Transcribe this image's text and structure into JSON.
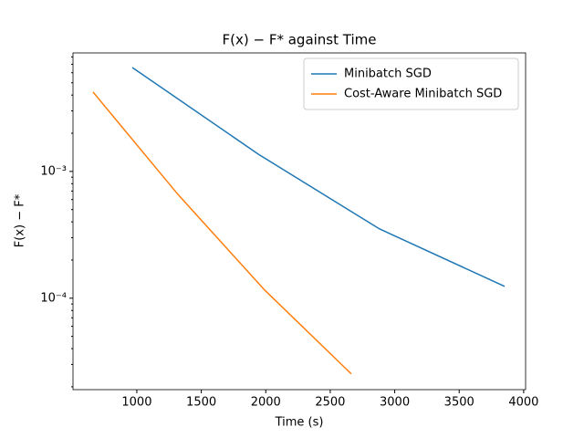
{
  "chart_data": {
    "type": "line",
    "title": "F(x) − F* against Time",
    "xlabel": "Time (s)",
    "ylabel": "F(x) − F*",
    "xlim": [
      505,
      4015
    ],
    "xticks": [
      1000,
      1500,
      2000,
      2500,
      3000,
      3500,
      4000
    ],
    "ylim": [
      1.9e-05,
      0.0086
    ],
    "yscale": "log",
    "yticks": [
      {
        "value": 0.0001,
        "label": "10⁻⁴"
      },
      {
        "value": 0.001,
        "label": "10⁻³"
      }
    ],
    "yminorticks": [
      2e-05,
      3e-05,
      4e-05,
      5e-05,
      6e-05,
      7e-05,
      8e-05,
      9e-05,
      0.0002,
      0.0003,
      0.0004,
      0.0005,
      0.0006,
      0.0007,
      0.0008,
      0.0009,
      0.002,
      0.003,
      0.004,
      0.005,
      0.006,
      0.007,
      0.008
    ],
    "legend": "upper right",
    "series": [
      {
        "name": "Minibatch SGD",
        "color": "#1f77b4",
        "x": [
          965,
          1941,
          2882,
          3852
        ],
        "values": [
          0.0066,
          0.00137,
          0.000352,
          0.000124
        ]
      },
      {
        "name": "Cost-Aware Minibatch SGD",
        "color": "#ff7f0e",
        "x": [
          660,
          1318,
          1991,
          2663
        ],
        "values": [
          0.00423,
          0.00066,
          0.000116,
          2.53e-05
        ]
      }
    ]
  }
}
